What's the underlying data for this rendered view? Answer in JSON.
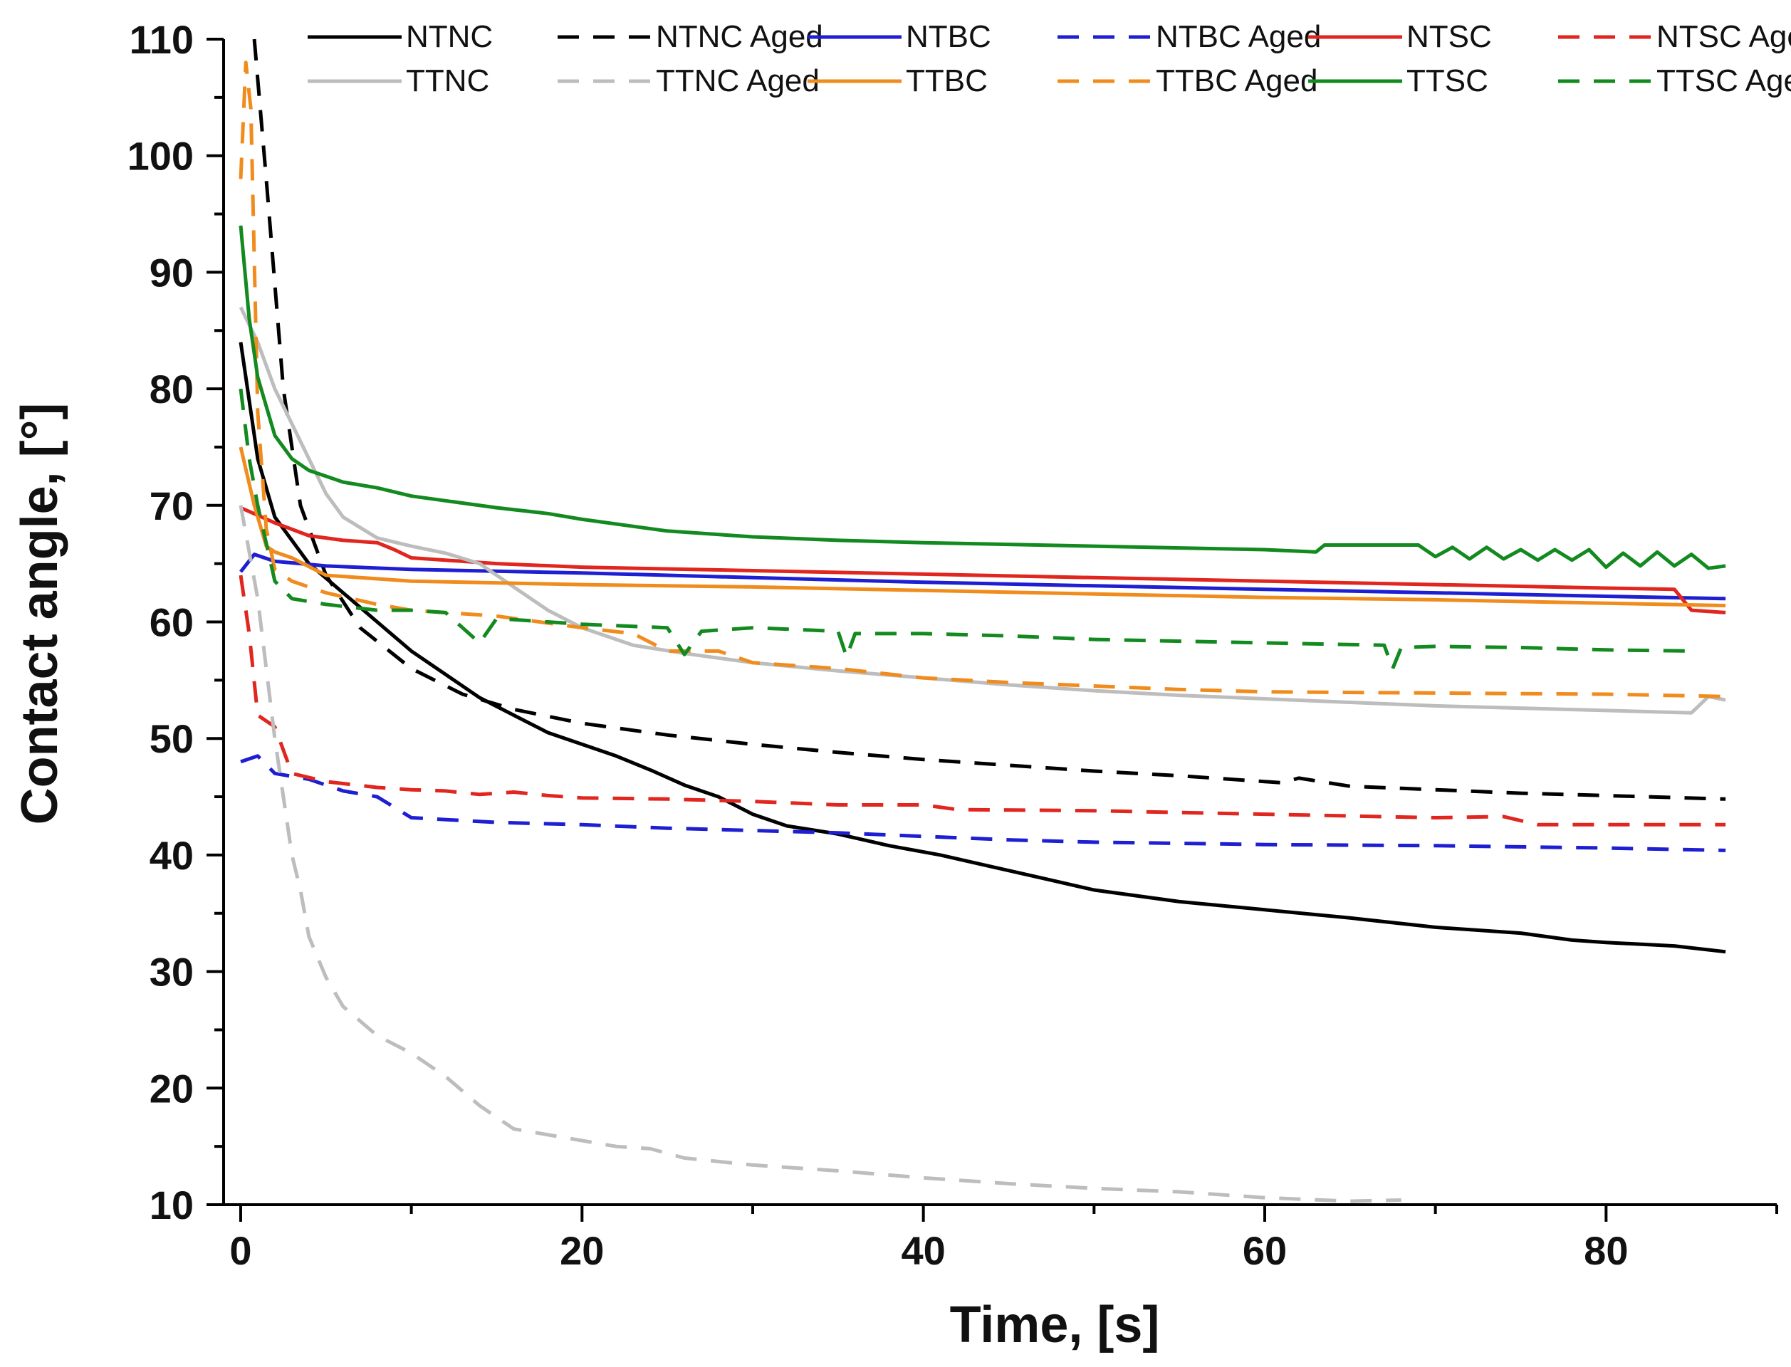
{
  "chart_data": {
    "type": "line",
    "title": "",
    "xlabel": "Time, [s]",
    "ylabel": "Contact angle, [°]",
    "xlim": [
      -1,
      90
    ],
    "ylim": [
      10,
      110
    ],
    "xticks": [
      0,
      20,
      40,
      60,
      80
    ],
    "yticks": [
      10,
      20,
      30,
      40,
      50,
      60,
      70,
      80,
      90,
      100,
      110
    ],
    "grid": false,
    "legend_position": "top",
    "series": [
      {
        "name": "NTNC",
        "color": "#000000",
        "dash": "solid",
        "x": [
          0,
          1,
          2,
          4,
          6,
          8,
          10,
          12,
          14,
          16,
          18,
          20,
          22,
          24,
          26,
          28,
          30,
          32,
          35,
          38,
          41,
          44,
          47,
          50,
          55,
          60,
          65,
          70,
          75,
          78,
          80,
          84,
          87
        ],
        "y": [
          84,
          74,
          69,
          65,
          62.5,
          60,
          57.5,
          55.5,
          53.5,
          52,
          50.5,
          49.5,
          48.5,
          47.3,
          46,
          45,
          43.5,
          42.5,
          41.8,
          40.8,
          40,
          39,
          38,
          37,
          36,
          35.3,
          34.6,
          33.8,
          33.3,
          32.7,
          32.5,
          32.2,
          31.7
        ]
      },
      {
        "name": "NTNC Aged",
        "color": "#000000",
        "dash": "dashed",
        "x": [
          0.8,
          1.5,
          2.5,
          3.5,
          5,
          7,
          10,
          13,
          16,
          20,
          25,
          30,
          35,
          40,
          45,
          50,
          55,
          61,
          62,
          65,
          70,
          75,
          80,
          87
        ],
        "y": [
          110,
          98,
          80,
          70,
          64,
          59.5,
          56,
          53.8,
          52.5,
          51.3,
          50.3,
          49.5,
          48.8,
          48.2,
          47.7,
          47.2,
          46.8,
          46.2,
          46.6,
          45.9,
          45.6,
          45.3,
          45.1,
          44.8
        ]
      },
      {
        "name": "NTBC",
        "color": "#1e1ed2",
        "dash": "solid",
        "x": [
          0,
          0.8,
          2,
          5,
          10,
          20,
          30,
          40,
          50,
          60,
          70,
          80,
          87
        ],
        "y": [
          64.3,
          65.8,
          65.2,
          64.8,
          64.5,
          64.2,
          63.8,
          63.4,
          63.1,
          62.8,
          62.5,
          62.2,
          62
        ]
      },
      {
        "name": "NTBC Aged",
        "color": "#1e1ed2",
        "dash": "dashed",
        "x": [
          0,
          1,
          2,
          4,
          6,
          8,
          10,
          15,
          20,
          25,
          30,
          35,
          40,
          45,
          50,
          55,
          60,
          70,
          80,
          87
        ],
        "y": [
          48,
          48.5,
          47,
          46.5,
          45.5,
          45,
          43.2,
          42.8,
          42.6,
          42.3,
          42.1,
          41.9,
          41.6,
          41.3,
          41.1,
          41,
          40.9,
          40.8,
          40.6,
          40.4
        ]
      },
      {
        "name": "NTSC",
        "color": "#e0261e",
        "dash": "solid",
        "x": [
          0,
          2,
          4,
          6,
          8,
          9,
          10,
          15,
          20,
          30,
          40,
          50,
          60,
          70,
          80,
          84,
          85,
          87
        ],
        "y": [
          69.8,
          68.5,
          67.4,
          67,
          66.8,
          66.2,
          65.5,
          65,
          64.7,
          64.4,
          64.1,
          63.8,
          63.5,
          63.2,
          62.9,
          62.8,
          61,
          60.8
        ]
      },
      {
        "name": "NTSC Aged",
        "color": "#e0261e",
        "dash": "dashed",
        "x": [
          0,
          0.5,
          1,
          2,
          3,
          5,
          8,
          10,
          12,
          14,
          16,
          18,
          20,
          25,
          30,
          35,
          40,
          42,
          50,
          60,
          70,
          74,
          76,
          87
        ],
        "y": [
          64,
          59,
          52,
          51,
          47,
          46.3,
          45.8,
          45.6,
          45.5,
          45.2,
          45.4,
          45.1,
          44.9,
          44.8,
          44.6,
          44.3,
          44.3,
          43.9,
          43.8,
          43.5,
          43.2,
          43.3,
          42.6,
          42.6
        ]
      },
      {
        "name": "TTNC",
        "color": "#bdbdbd",
        "dash": "solid",
        "x": [
          0,
          1,
          2,
          3,
          4,
          5,
          6,
          8,
          10,
          12,
          14,
          16,
          18,
          20,
          23,
          26,
          30,
          35,
          40,
          45,
          50,
          55,
          60,
          65,
          70,
          75,
          80,
          85,
          86,
          87
        ],
        "y": [
          87,
          84,
          80,
          77,
          74,
          71,
          69,
          67.2,
          66.5,
          65.9,
          65,
          63,
          61,
          59.5,
          58,
          57.3,
          56.5,
          55.8,
          55.2,
          54.6,
          54.1,
          53.7,
          53.4,
          53.1,
          52.8,
          52.6,
          52.4,
          52.2,
          53.6,
          53.3
        ]
      },
      {
        "name": "TTNC Aged",
        "color": "#bdbdbd",
        "dash": "dashed",
        "x": [
          0,
          0.5,
          1,
          1.5,
          2,
          2.5,
          3,
          3.5,
          4,
          5,
          6,
          8,
          10,
          12,
          14,
          16,
          20,
          22,
          24,
          26,
          30,
          35,
          40,
          45,
          50,
          55,
          60,
          65,
          68
        ],
        "y": [
          70,
          66,
          62,
          56,
          50,
          45,
          40,
          37,
          33,
          29.5,
          27,
          24.5,
          23,
          21,
          18.5,
          16.5,
          15.5,
          15,
          14.8,
          14,
          13.4,
          12.9,
          12.3,
          11.8,
          11.4,
          11.1,
          10.6,
          10.3,
          10.4
        ]
      },
      {
        "name": "TTBC",
        "color": "#f08c1e",
        "dash": "solid",
        "x": [
          0,
          0.8,
          1.5,
          2,
          3,
          5,
          10,
          20,
          30,
          40,
          50,
          60,
          70,
          80,
          87
        ],
        "y": [
          75,
          70,
          66.5,
          66,
          65.5,
          64,
          63.5,
          63.2,
          63,
          62.7,
          62.4,
          62.1,
          61.9,
          61.6,
          61.4
        ]
      },
      {
        "name": "TTBC Aged",
        "color": "#f08c1e",
        "dash": "dashed",
        "x": [
          0,
          0.3,
          0.6,
          1,
          1.5,
          2,
          3,
          4,
          5,
          8,
          10,
          15,
          20,
          23,
          25,
          28,
          30,
          35,
          40,
          45,
          50,
          55,
          60,
          70,
          80,
          87
        ],
        "y": [
          98,
          108,
          104,
          78,
          68,
          64.5,
          63.5,
          63,
          62.5,
          61.5,
          61,
          60.5,
          59.5,
          59,
          57.5,
          57.5,
          56.5,
          56,
          55.2,
          54.8,
          54.5,
          54.2,
          54,
          53.9,
          53.8,
          53.6
        ]
      },
      {
        "name": "TTSC",
        "color": "#138a1f",
        "dash": "solid",
        "x": [
          0,
          0.5,
          1,
          2,
          3,
          4,
          5,
          6,
          8,
          10,
          12,
          15,
          18,
          20,
          25,
          30,
          35,
          40,
          50,
          60,
          63,
          63.5,
          69,
          70,
          71,
          72,
          73,
          74,
          75,
          76,
          77,
          78,
          79,
          80,
          81,
          82,
          83,
          84,
          85,
          86,
          87
        ],
        "y": [
          94,
          86,
          81,
          76,
          74,
          73,
          72.5,
          72,
          71.5,
          70.8,
          70.4,
          69.8,
          69.3,
          68.8,
          67.8,
          67.3,
          67,
          66.8,
          66.5,
          66.2,
          66,
          66.6,
          66.6,
          65.6,
          66.4,
          65.4,
          66.4,
          65.4,
          66.2,
          65.3,
          66.2,
          65.3,
          66.2,
          64.7,
          65.9,
          64.8,
          66,
          64.8,
          65.8,
          64.6,
          64.8
        ]
      },
      {
        "name": "TTSC Aged",
        "color": "#138a1f",
        "dash": "dashed",
        "x": [
          0,
          0.5,
          1,
          2,
          3,
          5,
          8,
          10,
          12,
          14,
          15,
          18,
          20,
          25,
          26,
          27,
          30,
          35,
          35.5,
          36,
          40,
          45,
          50,
          60,
          67,
          67.5,
          68,
          70,
          75,
          80,
          85
        ],
        "y": [
          80,
          74,
          70,
          63.5,
          62,
          61.5,
          61,
          61,
          60.8,
          58.2,
          60.3,
          60,
          59.8,
          59.5,
          57.2,
          59.2,
          59.5,
          59.2,
          57,
          59,
          59,
          58.8,
          58.5,
          58.2,
          58,
          56,
          57.8,
          57.9,
          57.8,
          57.6,
          57.5
        ]
      }
    ]
  }
}
